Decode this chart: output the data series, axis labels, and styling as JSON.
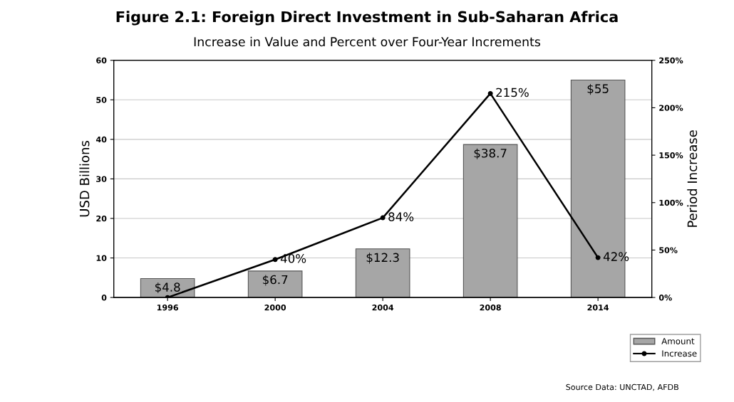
{
  "chart_data": {
    "type": "bar",
    "title": "Figure 2.1: Foreign Direct Investment in Sub-Saharan Africa",
    "subtitle": "Increase in Value and Percent over Four-Year Increments",
    "ylabel": "USD Billions",
    "y2label": "Period Increase",
    "categories": [
      "1996",
      "2000",
      "2004",
      "2008",
      "2014"
    ],
    "series": [
      {
        "name": "Amount",
        "color": "#a6a6a6",
        "values": [
          4.8,
          6.7,
          12.3,
          38.7,
          55
        ],
        "value_labels": [
          "$4.8",
          "$6.7",
          "$12.3",
          "$38.7",
          "$55"
        ]
      },
      {
        "name": "Increase",
        "type": "line",
        "axis": "y2",
        "color": "#000000",
        "marker": "circle",
        "values": [
          0,
          40,
          84,
          215,
          42
        ],
        "value_labels": [
          null,
          "40%",
          "84%",
          "215%",
          "42%"
        ]
      }
    ],
    "ylim": [
      0,
      60
    ],
    "yticks": [
      0,
      10,
      20,
      30,
      40,
      50,
      60
    ],
    "y2lim": [
      0,
      250
    ],
    "y2ticks": [
      {
        "value": 0,
        "label": "0%"
      },
      {
        "value": 50,
        "label": "50%"
      },
      {
        "value": 100,
        "label": "100%"
      },
      {
        "value": 150,
        "label": "150%"
      },
      {
        "value": 200,
        "label": "200%"
      },
      {
        "value": 250,
        "label": "250%"
      }
    ],
    "grid": "y",
    "legend": "bottom right",
    "annotations": [
      "Source Data: UNCTAD, AFDB"
    ]
  }
}
